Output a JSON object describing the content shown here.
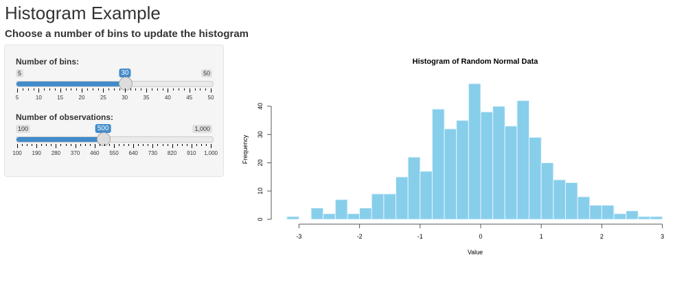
{
  "title": "Histogram Example",
  "subtitle": "Choose a number of bins to update the histogram",
  "sliders": [
    {
      "label": "Number of bins:",
      "min": "5",
      "max": "50",
      "value": "30",
      "fraction": 0.5556,
      "ticks": [
        "5",
        "10",
        "15",
        "20",
        "25",
        "30",
        "35",
        "40",
        "45",
        "50"
      ]
    },
    {
      "label": "Number of observations:",
      "min": "100",
      "max": "1,000",
      "value": "500",
      "fraction": 0.4444,
      "ticks": [
        "100",
        "190",
        "280",
        "370",
        "460",
        "550",
        "640",
        "730",
        "820",
        "910",
        "1,000"
      ]
    }
  ],
  "chart_data": {
    "type": "bar",
    "title": "Histogram of Random Normal Data",
    "xlabel": "Value",
    "ylabel": "Frequency",
    "bin_start": -3.2,
    "bin_width": 0.2,
    "values": [
      1,
      0,
      4,
      2,
      7,
      2,
      4,
      9,
      9,
      15,
      22,
      17,
      39,
      32,
      35,
      48,
      38,
      40,
      33,
      42,
      29,
      20,
      14,
      13,
      8,
      5,
      5,
      2,
      3,
      1,
      1
    ],
    "xticks": [
      "-3",
      "-2",
      "-1",
      "0",
      "1",
      "2",
      "3"
    ],
    "yticks": [
      "0",
      "10",
      "20",
      "30",
      "40"
    ],
    "xlim": [
      -3.2,
      3.0
    ],
    "ylim": [
      0,
      48
    ],
    "bar_color": "#87ceeb"
  }
}
